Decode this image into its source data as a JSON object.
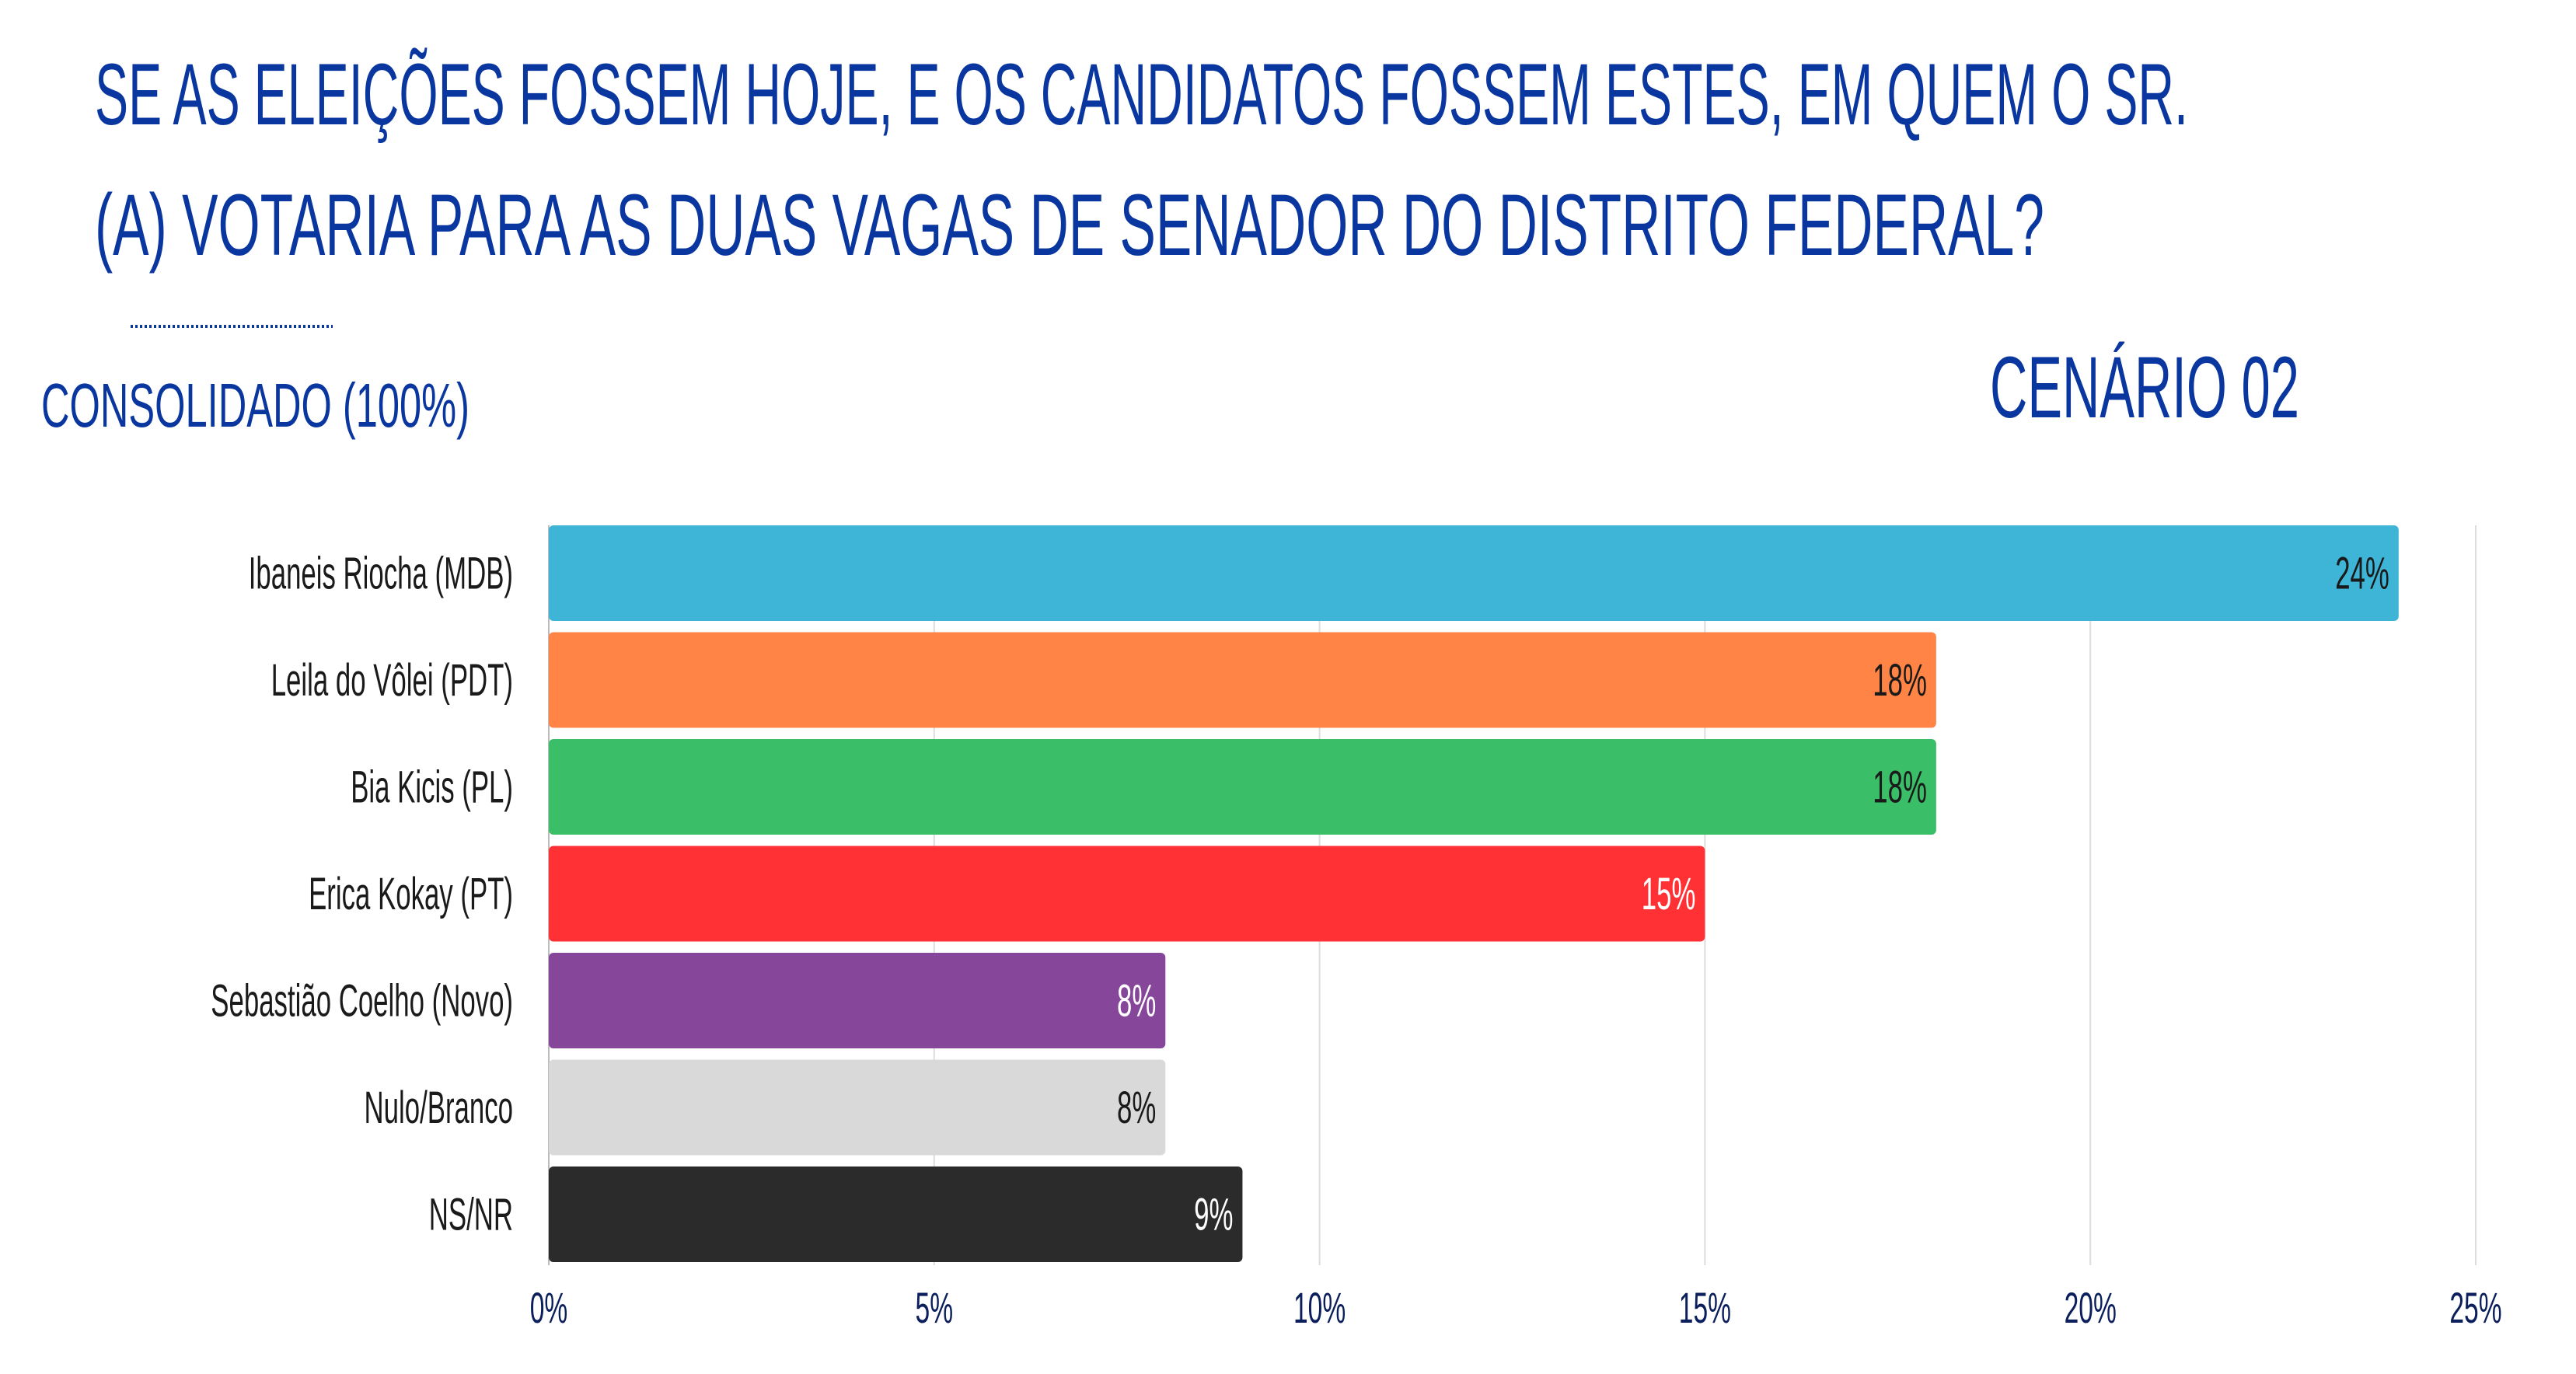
{
  "header": {
    "title_line1": "SE AS ELEIÇÕES FOSSEM HOJE, E OS CANDIDATOS FOSSEM ESTES, EM QUEM O SR.",
    "title_line2": "(A) VOTARIA PARA AS DUAS VAGAS DE SENADOR DO DISTRITO FEDERAL?",
    "subtitle": "CONSOLIDADO (100%)",
    "scenario": "CENÁRIO 02"
  },
  "colors": {
    "heading": "#0a36a0"
  },
  "chart_data": {
    "type": "bar",
    "orientation": "horizontal",
    "title": "SE AS ELEIÇÕES FOSSEM HOJE, E OS CANDIDATOS FOSSEM ESTES, EM QUEM O SR. (A) VOTARIA PARA AS DUAS VAGAS DE SENADOR DO DISTRITO FEDERAL?",
    "categories": [
      "Ibaneis Riocha (MDB)",
      "Leila do Vôlei (PDT)",
      "Bia Kicis (PL)",
      "Erica Kokay (PT)",
      "Sebastião Coelho (Novo)",
      "Nulo/Branco",
      "NS/NR"
    ],
    "values": [
      24,
      18,
      18,
      15,
      8,
      8,
      9
    ],
    "data_labels": [
      "24%",
      "18%",
      "18%",
      "15%",
      "8%",
      "8%",
      "9%"
    ],
    "bar_colors": [
      "#3eb5d6",
      "#ff8446",
      "#3bbe68",
      "#ff3134",
      "#86479b",
      "#d9d9d9",
      "#2b2b2b"
    ],
    "label_colors": [
      "#1a1a1a",
      "#1a1a1a",
      "#1a1a1a",
      "#ffffff",
      "#ffffff",
      "#1a1a1a",
      "#ffffff"
    ],
    "xlim": [
      0,
      25
    ],
    "xticks": [
      0,
      5,
      10,
      15,
      20,
      25
    ],
    "xtick_labels": [
      "0%",
      "5%",
      "10%",
      "15%",
      "20%",
      "25%"
    ],
    "xlabel": "",
    "ylabel": "",
    "grid": true,
    "legend": "none"
  }
}
